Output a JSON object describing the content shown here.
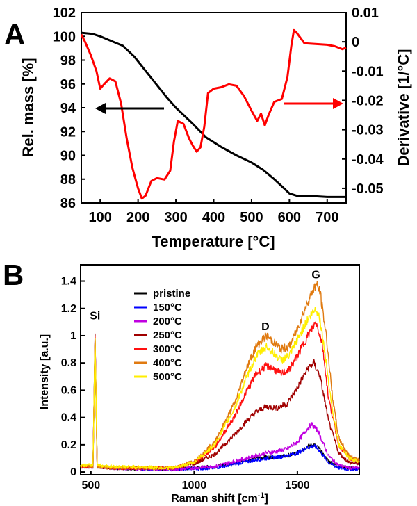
{
  "chart_data": [
    {
      "panel_label": "A",
      "type": "line",
      "xlabel": "Temperature [°C]",
      "ylabel_left": "Rel. mass [%]",
      "ylabel_right": "Derivative [1/°C]",
      "xlim": [
        50,
        750
      ],
      "ylim_left": [
        86,
        102
      ],
      "ylim_right": [
        -0.055,
        0.01
      ],
      "x_ticks": [
        100,
        200,
        300,
        400,
        500,
        600,
        700
      ],
      "y_ticks_left": [
        86,
        88,
        90,
        92,
        94,
        96,
        98,
        100,
        102
      ],
      "y_ticks_right": [
        {
          "value": -0.05,
          "label": "-0.05"
        },
        {
          "value": -0.04,
          "label": "-0.04"
        },
        {
          "value": -0.03,
          "label": "-0.03"
        },
        {
          "value": -0.02,
          "label": "-0.02"
        },
        {
          "value": -0.01,
          "label": "-0.01"
        },
        {
          "value": 0,
          "label": "0"
        },
        {
          "value": 0.01,
          "label": "0.01"
        }
      ],
      "series": [
        {
          "axis": "left",
          "color": "#000000",
          "x": [
            50,
            80,
            100,
            130,
            160,
            190,
            220,
            250,
            275,
            300,
            340,
            380,
            420,
            460,
            500,
            530,
            560,
            580,
            600,
            620,
            650,
            700,
            750
          ],
          "y": [
            100.3,
            100.2,
            100.0,
            99.6,
            99.2,
            98.3,
            97.1,
            95.9,
            94.9,
            94.0,
            92.8,
            91.5,
            90.7,
            90.0,
            89.4,
            88.8,
            88.0,
            87.4,
            86.8,
            86.6,
            86.6,
            86.5,
            86.5
          ]
        },
        {
          "axis": "right",
          "color": "#ff0000",
          "x": [
            50,
            60,
            75,
            90,
            100,
            110,
            125,
            140,
            155,
            170,
            185,
            200,
            210,
            220,
            235,
            250,
            270,
            285,
            295,
            305,
            320,
            335,
            345,
            355,
            365,
            375,
            385,
            400,
            420,
            440,
            460,
            480,
            500,
            515,
            525,
            535,
            545,
            560,
            580,
            595,
            605,
            612,
            620,
            640,
            700,
            720,
            740,
            750
          ],
          "y": [
            0.0025,
            0.0,
            -0.0045,
            -0.01,
            -0.016,
            -0.0145,
            -0.0125,
            -0.0135,
            -0.021,
            -0.033,
            -0.043,
            -0.05,
            -0.0535,
            -0.0525,
            -0.0475,
            -0.0465,
            -0.047,
            -0.044,
            -0.034,
            -0.027,
            -0.028,
            -0.033,
            -0.0355,
            -0.0375,
            -0.036,
            -0.029,
            -0.0175,
            -0.016,
            -0.0155,
            -0.0145,
            -0.015,
            -0.0185,
            -0.0235,
            -0.027,
            -0.0245,
            -0.0285,
            -0.025,
            -0.0205,
            -0.0195,
            -0.012,
            -0.0015,
            0.004,
            0.003,
            -0.0005,
            -0.001,
            -0.0015,
            -0.0025,
            -0.002
          ]
        }
      ],
      "annotations": [
        {
          "type": "arrow",
          "color": "#000000",
          "direction": "left",
          "points_to_axis": "left"
        },
        {
          "type": "arrow",
          "color": "#ff0000",
          "direction": "right",
          "points_to_axis": "right"
        }
      ]
    },
    {
      "panel_label": "B",
      "type": "line",
      "xlabel": "Raman shift [cm",
      "xlabel_unit_sup": "-1",
      "xlabel_close": "]",
      "ylabel": "Intensity [a.u.]",
      "xlim": [
        450,
        1800
      ],
      "ylim": [
        -0.02,
        1.52
      ],
      "x_ticks": [
        500,
        1000,
        1500
      ],
      "y_ticks": [
        {
          "value": 0,
          "label": "0"
        },
        {
          "value": 0.2,
          "label": "0.2"
        },
        {
          "value": 0.4,
          "label": "0.4"
        },
        {
          "value": 0.6,
          "label": "0.6"
        },
        {
          "value": 0.8,
          "label": "0.8"
        },
        {
          "value": 1,
          "label": "1"
        },
        {
          "value": 1.2,
          "label": "1.2"
        },
        {
          "value": 1.4,
          "label": "1.4"
        }
      ],
      "peak_labels": [
        {
          "text": "Si",
          "x": 520,
          "y": 1.12
        },
        {
          "text": "D",
          "x": 1345,
          "y": 1.04
        },
        {
          "text": "G",
          "x": 1590,
          "y": 1.42
        }
      ],
      "legend_position": "upper-left",
      "series": [
        {
          "name": "pristine",
          "color": "#000000",
          "x": [
            450,
            510,
            520,
            530,
            600,
            900,
            1100,
            1200,
            1300,
            1350,
            1400,
            1450,
            1500,
            1550,
            1580,
            1600,
            1650,
            1700,
            1750,
            1800
          ],
          "y": [
            0.04,
            0.04,
            1.0,
            0.04,
            0.03,
            0.02,
            0.04,
            0.07,
            0.1,
            0.11,
            0.11,
            0.12,
            0.14,
            0.19,
            0.2,
            0.18,
            0.08,
            0.04,
            0.03,
            0.03
          ]
        },
        {
          "name": "150°C",
          "color": "#0000ff",
          "x": [
            450,
            510,
            520,
            530,
            600,
            900,
            1100,
            1200,
            1300,
            1350,
            1400,
            1450,
            1500,
            1550,
            1580,
            1600,
            1650,
            1700,
            1750,
            1800
          ],
          "y": [
            0.04,
            0.04,
            1.0,
            0.04,
            0.03,
            0.02,
            0.03,
            0.06,
            0.09,
            0.1,
            0.11,
            0.12,
            0.14,
            0.18,
            0.19,
            0.17,
            0.07,
            0.03,
            0.02,
            0.02
          ]
        },
        {
          "name": "200°C",
          "color": "#c000e0",
          "x": [
            450,
            510,
            520,
            530,
            600,
            900,
            1100,
            1200,
            1300,
            1350,
            1400,
            1450,
            1500,
            1550,
            1570,
            1600,
            1650,
            1700,
            1750,
            1800
          ],
          "y": [
            0.04,
            0.04,
            1.0,
            0.04,
            0.03,
            0.02,
            0.04,
            0.08,
            0.12,
            0.14,
            0.15,
            0.17,
            0.22,
            0.32,
            0.35,
            0.3,
            0.12,
            0.05,
            0.03,
            0.03
          ]
        },
        {
          "name": "250°C",
          "color": "#a00000",
          "x": [
            450,
            510,
            520,
            530,
            600,
            900,
            1000,
            1100,
            1200,
            1250,
            1300,
            1350,
            1400,
            1450,
            1500,
            1550,
            1580,
            1610,
            1650,
            1700,
            1750,
            1800
          ],
          "y": [
            0.04,
            0.04,
            1.0,
            0.04,
            0.03,
            0.03,
            0.06,
            0.13,
            0.28,
            0.37,
            0.44,
            0.48,
            0.47,
            0.5,
            0.62,
            0.76,
            0.8,
            0.7,
            0.38,
            0.14,
            0.07,
            0.06
          ]
        },
        {
          "name": "300°C",
          "color": "#ff1010",
          "x": [
            450,
            510,
            520,
            530,
            600,
            900,
            1000,
            1100,
            1200,
            1250,
            1300,
            1350,
            1380,
            1420,
            1460,
            1500,
            1550,
            1590,
            1620,
            1650,
            1700,
            1750,
            1800
          ],
          "y": [
            0.04,
            0.04,
            1.0,
            0.04,
            0.03,
            0.03,
            0.07,
            0.18,
            0.42,
            0.58,
            0.72,
            0.78,
            0.76,
            0.72,
            0.75,
            0.85,
            1.0,
            1.1,
            0.95,
            0.55,
            0.2,
            0.1,
            0.08
          ]
        },
        {
          "name": "400°C",
          "color": "#e07a10",
          "x": [
            450,
            510,
            520,
            530,
            600,
            900,
            1000,
            1100,
            1200,
            1250,
            1300,
            1350,
            1380,
            1420,
            1460,
            1500,
            1550,
            1590,
            1610,
            1640,
            1670,
            1700,
            1750,
            1800
          ],
          "y": [
            0.04,
            0.04,
            1.0,
            0.04,
            0.03,
            0.03,
            0.08,
            0.22,
            0.52,
            0.75,
            0.92,
            1.0,
            0.96,
            0.9,
            0.92,
            1.05,
            1.25,
            1.38,
            1.32,
            1.0,
            0.55,
            0.25,
            0.12,
            0.09
          ]
        },
        {
          "name": "500°C",
          "color": "#ffee00",
          "x": [
            450,
            510,
            520,
            530,
            600,
            900,
            1000,
            1100,
            1200,
            1250,
            1300,
            1350,
            1380,
            1420,
            1460,
            1500,
            1550,
            1590,
            1610,
            1640,
            1670,
            1700,
            1750,
            1800
          ],
          "y": [
            0.05,
            0.05,
            1.0,
            0.05,
            0.04,
            0.03,
            0.07,
            0.2,
            0.48,
            0.68,
            0.85,
            0.92,
            0.88,
            0.82,
            0.85,
            0.97,
            1.12,
            1.2,
            1.12,
            0.8,
            0.45,
            0.2,
            0.1,
            0.08
          ]
        }
      ]
    }
  ]
}
